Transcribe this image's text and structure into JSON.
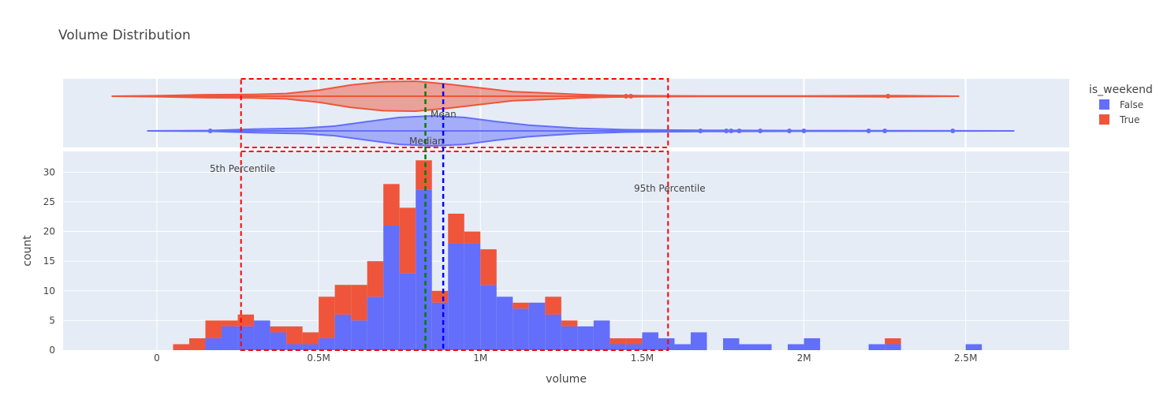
{
  "chart_data": {
    "type": "bar",
    "subtype": "stacked-histogram-with-violin-marginal",
    "title": "Volume Distribution",
    "xlabel": "volume",
    "ylabel": "count",
    "xlim": [
      -290000,
      2820000
    ],
    "ylim": [
      0,
      33.5
    ],
    "x_ticks": [
      {
        "value": 0,
        "label": "0"
      },
      {
        "value": 500000,
        "label": "0.5M"
      },
      {
        "value": 1000000,
        "label": "1M"
      },
      {
        "value": 1500000,
        "label": "1.5M"
      },
      {
        "value": 2000000,
        "label": "2M"
      },
      {
        "value": 2500000,
        "label": "2.5M"
      }
    ],
    "y_ticks": [
      0,
      5,
      10,
      15,
      20,
      25,
      30
    ],
    "grid": true,
    "bin_width": 50000,
    "bin_start": 50000,
    "legend": {
      "title": "is_weekend",
      "position": "top-right",
      "entries": [
        "False",
        "True"
      ]
    },
    "series": [
      {
        "name": "False",
        "color": "#636efa",
        "values": [
          0,
          0,
          2,
          4,
          4,
          5,
          3,
          1,
          1,
          2,
          6,
          5,
          9,
          21,
          13,
          27,
          8,
          18,
          18,
          11,
          9,
          7,
          8,
          6,
          4,
          4,
          5,
          1,
          1,
          3,
          2,
          1,
          3,
          0,
          2,
          1,
          1,
          0,
          1,
          2,
          0,
          0,
          0,
          1,
          1,
          0,
          0,
          0,
          0,
          1
        ]
      },
      {
        "name": "True",
        "color": "#ef553b",
        "values": [
          1,
          2,
          3,
          1,
          2,
          0,
          1,
          3,
          2,
          7,
          5,
          6,
          6,
          7,
          11,
          5,
          2,
          5,
          2,
          6,
          0,
          1,
          0,
          3,
          1,
          0,
          0,
          1,
          1,
          0,
          0,
          0,
          0,
          0,
          0,
          0,
          0,
          0,
          0,
          0,
          0,
          0,
          0,
          0,
          1,
          0,
          0,
          0,
          0,
          0
        ]
      }
    ],
    "violins": [
      {
        "name": "True",
        "color": "#ef553b",
        "whisker_range": [
          -140000,
          2480000
        ],
        "profile": [
          [
            -140000,
            0.0
          ],
          [
            0,
            0.03
          ],
          [
            150000,
            0.1
          ],
          [
            300000,
            0.12
          ],
          [
            400000,
            0.18
          ],
          [
            500000,
            0.4
          ],
          [
            600000,
            0.75
          ],
          [
            700000,
            0.97
          ],
          [
            800000,
            1.0
          ],
          [
            900000,
            0.8
          ],
          [
            1000000,
            0.55
          ],
          [
            1100000,
            0.3
          ],
          [
            1200000,
            0.22
          ],
          [
            1300000,
            0.12
          ],
          [
            1400000,
            0.06
          ],
          [
            1500000,
            0.03
          ],
          [
            1700000,
            0.01
          ],
          [
            2000000,
            0.01
          ],
          [
            2250000,
            0.04
          ],
          [
            2480000,
            0.0
          ]
        ],
        "outliers": [
          1450000,
          1465000,
          2260000
        ]
      },
      {
        "name": "False",
        "color": "#636efa",
        "whisker_range": [
          -30000,
          2650000
        ],
        "profile": [
          [
            -30000,
            0.0
          ],
          [
            160000,
            0.02
          ],
          [
            300000,
            0.12
          ],
          [
            450000,
            0.18
          ],
          [
            550000,
            0.32
          ],
          [
            650000,
            0.62
          ],
          [
            750000,
            0.9
          ],
          [
            850000,
            1.0
          ],
          [
            950000,
            0.9
          ],
          [
            1050000,
            0.62
          ],
          [
            1150000,
            0.38
          ],
          [
            1300000,
            0.18
          ],
          [
            1450000,
            0.08
          ],
          [
            1600000,
            0.05
          ],
          [
            1800000,
            0.03
          ],
          [
            2000000,
            0.02
          ],
          [
            2300000,
            0.01
          ],
          [
            2650000,
            0.0
          ]
        ],
        "outliers": [
          165000,
          1680000,
          1760000,
          1775000,
          1800000,
          1865000,
          1955000,
          2000000,
          2200000,
          2250000,
          2460000
        ]
      }
    ],
    "reference_lines": [
      {
        "label": "Median",
        "value": 830000,
        "color": "#008000",
        "style": "dash"
      },
      {
        "label": "Mean",
        "value": 885000,
        "color": "#0000ff",
        "style": "dash"
      }
    ],
    "percentile_band": {
      "low_label": "5th Percentile",
      "high_label": "95th Percentile",
      "low": 260000,
      "high": 1580000,
      "color": "#ff0000",
      "style": "dash"
    }
  }
}
